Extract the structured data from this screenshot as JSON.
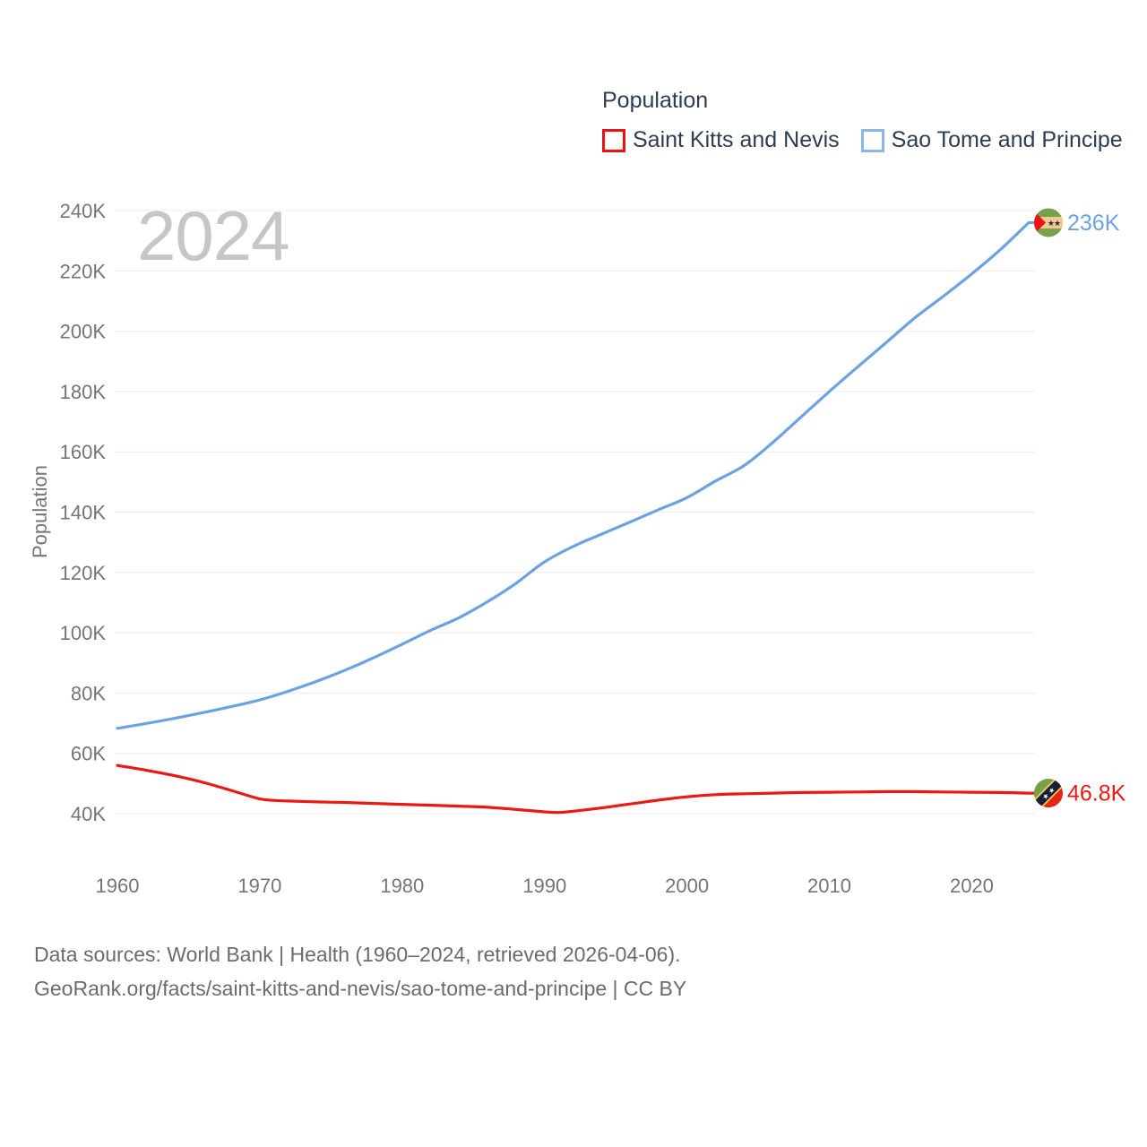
{
  "watermark_year": "2024",
  "legend": {
    "title": "Population",
    "items": [
      {
        "label": "Saint Kitts and Nevis",
        "swatch_color": "#f10e0e"
      },
      {
        "label": "Sao Tome and Principe",
        "swatch_color": "#8ab6e8"
      }
    ]
  },
  "chart_data": {
    "type": "line",
    "title": "Population",
    "xlabel": "",
    "ylabel": "Population",
    "xlim": [
      1960,
      2024
    ],
    "ylim": [
      40000,
      240000
    ],
    "grid": true,
    "legend_position": "top-right",
    "x_ticks": [
      1960,
      1970,
      1980,
      1990,
      2000,
      2010,
      2020
    ],
    "y_ticks": [
      {
        "value": 40000,
        "label": "40K"
      },
      {
        "value": 60000,
        "label": "60K"
      },
      {
        "value": 80000,
        "label": "80K"
      },
      {
        "value": 100000,
        "label": "100K"
      },
      {
        "value": 120000,
        "label": "120K"
      },
      {
        "value": 140000,
        "label": "140K"
      },
      {
        "value": 160000,
        "label": "160K"
      },
      {
        "value": 180000,
        "label": "180K"
      },
      {
        "value": 200000,
        "label": "200K"
      },
      {
        "value": 220000,
        "label": "220K"
      },
      {
        "value": 240000,
        "label": "240K"
      }
    ],
    "series": [
      {
        "name": "Saint Kitts and Nevis",
        "color": "#ec1812",
        "flag": "saint-kitts-and-nevis",
        "end_label": "46.8K",
        "points": [
          [
            1960,
            56000
          ],
          [
            1962,
            54400
          ],
          [
            1964,
            52600
          ],
          [
            1966,
            50400
          ],
          [
            1968,
            47700
          ],
          [
            1970,
            44900
          ],
          [
            1971,
            44400
          ],
          [
            1972,
            44200
          ],
          [
            1974,
            43900
          ],
          [
            1976,
            43700
          ],
          [
            1978,
            43400
          ],
          [
            1980,
            43100
          ],
          [
            1982,
            42800
          ],
          [
            1984,
            42500
          ],
          [
            1986,
            42100
          ],
          [
            1988,
            41400
          ],
          [
            1990,
            40600
          ],
          [
            1991,
            40400
          ],
          [
            1992,
            40800
          ],
          [
            1994,
            41900
          ],
          [
            1996,
            43200
          ],
          [
            1998,
            44500
          ],
          [
            2000,
            45600
          ],
          [
            2002,
            46300
          ],
          [
            2004,
            46600
          ],
          [
            2006,
            46800
          ],
          [
            2008,
            47000
          ],
          [
            2010,
            47100
          ],
          [
            2012,
            47200
          ],
          [
            2014,
            47300
          ],
          [
            2016,
            47300
          ],
          [
            2018,
            47200
          ],
          [
            2020,
            47100
          ],
          [
            2022,
            47000
          ],
          [
            2024,
            46800
          ]
        ]
      },
      {
        "name": "Sao Tome and Principe",
        "color": "#6ba3e2",
        "flag": "sao-tome-and-principe",
        "end_label": "236K",
        "points": [
          [
            1960,
            68300
          ],
          [
            1962,
            69900
          ],
          [
            1964,
            71600
          ],
          [
            1966,
            73500
          ],
          [
            1968,
            75500
          ],
          [
            1970,
            77700
          ],
          [
            1972,
            80600
          ],
          [
            1974,
            83900
          ],
          [
            1976,
            87600
          ],
          [
            1978,
            91700
          ],
          [
            1980,
            96200
          ],
          [
            1982,
            100800
          ],
          [
            1984,
            105000
          ],
          [
            1986,
            110300
          ],
          [
            1988,
            116400
          ],
          [
            1990,
            123500
          ],
          [
            1992,
            128600
          ],
          [
            1994,
            132700
          ],
          [
            1996,
            136700
          ],
          [
            1998,
            140800
          ],
          [
            2000,
            144800
          ],
          [
            2002,
            150300
          ],
          [
            2004,
            155400
          ],
          [
            2006,
            163000
          ],
          [
            2008,
            171500
          ],
          [
            2010,
            180000
          ],
          [
            2012,
            188200
          ],
          [
            2014,
            196300
          ],
          [
            2016,
            204400
          ],
          [
            2018,
            211600
          ],
          [
            2020,
            219000
          ],
          [
            2022,
            227000
          ],
          [
            2024,
            236000
          ]
        ]
      }
    ]
  },
  "footer": {
    "line1": "Data sources: World Bank | Health (1960–2024, retrieved 2026-04-06).",
    "line2": "GeoRank.org/facts/saint-kitts-and-nevis/sao-tome-and-principe | CC BY"
  }
}
